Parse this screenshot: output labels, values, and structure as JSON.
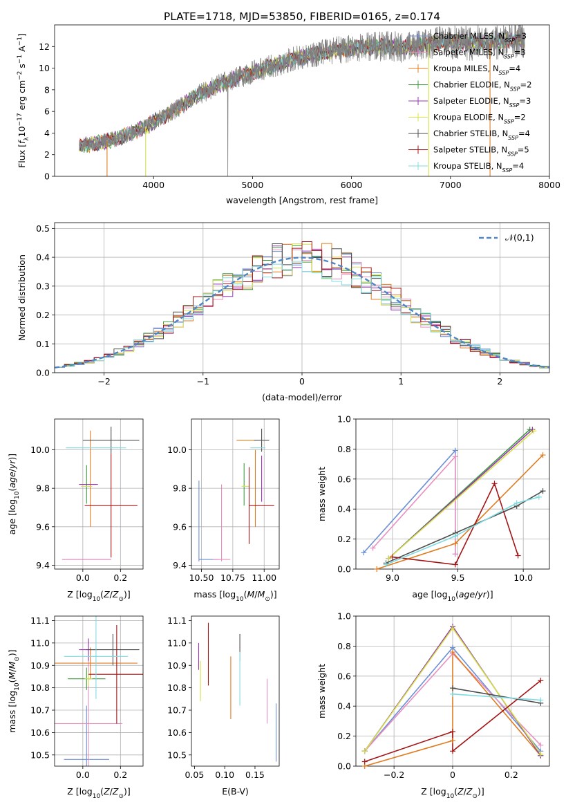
{
  "figure": {
    "title": "PLATE=1718, MJD=53850, FIBERID=0165, z=0.174"
  },
  "colors": {
    "chabrier_miles": "#6b8fd6",
    "salpeter_miles": "#e88fbf",
    "kroupa_miles": "#e07b20",
    "chabrier_elodie": "#3e9a3e",
    "salpeter_elodie": "#9a35b4",
    "kroupa_elodie": "#d6e24a",
    "chabrier_stelib": "#4d4d4d",
    "salpeter_stelib": "#a31515",
    "kroupa_stelib": "#7fdbe0",
    "data": "#808080",
    "normal": "#4f86c6"
  },
  "chart_data": [
    {
      "id": "spectrum",
      "type": "line",
      "xlabel": "wavelength [Angstrom, rest frame]",
      "ylabel": "Flux [f_λ10^-17 erg cm^-2 s^-1 A^-1]",
      "xlim": [
        3000,
        8000
      ],
      "ylim": [
        0,
        14
      ],
      "xticks": [
        4000,
        5000,
        6000,
        7000,
        8000
      ],
      "yticks": [
        0,
        2,
        4,
        6,
        8,
        10,
        12
      ],
      "grid": false,
      "legend_position": "right",
      "legend": [
        {
          "label": "Chabrier MILES, N",
          "sub": "SSP",
          "suffix": "=3",
          "color_key": "chabrier_miles"
        },
        {
          "label": "Salpeter MILES, N",
          "sub": "SSP",
          "suffix": "=3",
          "color_key": "salpeter_miles"
        },
        {
          "label": "Kroupa MILES, N",
          "sub": "SSP",
          "suffix": "=4",
          "color_key": "kroupa_miles"
        },
        {
          "label": "Chabrier ELODIE, N",
          "sub": "SSP",
          "suffix": "=2",
          "color_key": "chabrier_elodie"
        },
        {
          "label": "Salpeter ELODIE, N",
          "sub": "SSP",
          "suffix": "=3",
          "color_key": "salpeter_elodie"
        },
        {
          "label": "Kroupa ELODIE, N",
          "sub": "SSP",
          "suffix": "=2",
          "color_key": "kroupa_elodie"
        },
        {
          "label": "Chabrier STELIB, N",
          "sub": "SSP",
          "suffix": "=4",
          "color_key": "chabrier_stelib"
        },
        {
          "label": "Salpeter STELIB, N",
          "sub": "SSP",
          "suffix": "=5",
          "color_key": "salpeter_stelib"
        },
        {
          "label": "Kroupa STELIB, N",
          "sub": "SSP",
          "suffix": "=4",
          "color_key": "kroupa_stelib"
        }
      ],
      "continuum": {
        "x": [
          3250,
          3500,
          3700,
          3900,
          4000,
          4200,
          4400,
          4600,
          4800,
          5000,
          5200,
          5400,
          5600,
          5800,
          6000,
          6200,
          6400,
          6600,
          6800,
          7000,
          7200,
          7400,
          7600,
          7750
        ],
        "y": [
          2.8,
          3.2,
          3.7,
          4.5,
          5.0,
          6.0,
          7.3,
          8.2,
          9.0,
          9.6,
          10.2,
          10.8,
          11.2,
          11.6,
          11.8,
          12.0,
          12.0,
          11.9,
          12.3,
          12.4,
          12.3,
          12.4,
          12.6,
          12.6
        ]
      },
      "model_dropouts": [
        {
          "x": 3530,
          "color_key": "kroupa_miles"
        },
        {
          "x": 3920,
          "color_key": "kroupa_elodie"
        },
        {
          "x": 6780,
          "color_key": "kroupa_elodie"
        },
        {
          "x": 7400,
          "color_key": "kroupa_miles"
        }
      ]
    },
    {
      "id": "residuals",
      "type": "histogram",
      "xlabel": "(data-model)/error",
      "ylabel": "Normed distribution",
      "xlim": [
        -2.5,
        2.5
      ],
      "ylim": [
        0,
        0.52
      ],
      "xticks": [
        -2,
        -1,
        0,
        1,
        2
      ],
      "yticks": [
        0.0,
        0.1,
        0.2,
        0.3,
        0.4,
        0.5
      ],
      "grid": true,
      "legend_position": "upper-right",
      "legend_label": "𝒩(0,1)",
      "bin_range": [
        -2.5,
        2.5
      ],
      "bins": 50,
      "series": [
        {
          "color_key": "chabrier_miles",
          "seed": 11
        },
        {
          "color_key": "salpeter_miles",
          "seed": 23
        },
        {
          "color_key": "kroupa_miles",
          "seed": 37
        },
        {
          "color_key": "chabrier_elodie",
          "seed": 41
        },
        {
          "color_key": "salpeter_elodie",
          "seed": 53
        },
        {
          "color_key": "kroupa_elodie",
          "seed": 67
        },
        {
          "color_key": "chabrier_stelib",
          "seed": 71
        },
        {
          "color_key": "salpeter_stelib",
          "seed": 83
        },
        {
          "color_key": "kroupa_stelib",
          "seed": 97
        }
      ]
    },
    {
      "id": "z-age",
      "type": "errorbar",
      "xlabel": "Z [log10(Z/Z⊙)]",
      "ylabel": "age [log10(age/yr)]",
      "xlim": [
        -0.15,
        0.32
      ],
      "ylim": [
        9.38,
        10.16
      ],
      "xticks": [
        0.0,
        0.2
      ],
      "yticks": [
        9.4,
        9.6,
        9.8,
        10.0
      ],
      "grid": true,
      "points": [
        {
          "x": 0.02,
          "y": 9.43,
          "xerr": 0.13,
          "yerr": 0.0,
          "color_key": "chabrier_miles"
        },
        {
          "x": 0.02,
          "y": 9.43,
          "xerr": 0.13,
          "yerr": 0.0,
          "color_key": "salpeter_miles"
        },
        {
          "x": 0.04,
          "y": 9.85,
          "xerr": 0.0,
          "yerr": 0.25,
          "color_key": "kroupa_miles"
        },
        {
          "x": 0.02,
          "y": 9.82,
          "xerr": 0.0,
          "yerr": 0.1,
          "color_key": "chabrier_elodie"
        },
        {
          "x": 0.03,
          "y": 9.82,
          "xerr": 0.05,
          "yerr": 0.0,
          "color_key": "salpeter_elodie"
        },
        {
          "x": 0.02,
          "y": 9.81,
          "xerr": 0.03,
          "yerr": 0.0,
          "color_key": "kroupa_elodie"
        },
        {
          "x": 0.15,
          "y": 10.05,
          "xerr": 0.15,
          "yerr": 0.07,
          "color_key": "chabrier_stelib"
        },
        {
          "x": 0.15,
          "y": 9.71,
          "xerr": 0.14,
          "yerr": 0.27,
          "color_key": "salpeter_stelib"
        },
        {
          "x": 0.07,
          "y": 10.01,
          "xerr": 0.16,
          "yerr": 0.0,
          "color_key": "kroupa_stelib"
        }
      ]
    },
    {
      "id": "mass-age",
      "type": "errorbar",
      "xlabel": "mass [log10(M/M⊙)]",
      "ylabel": "",
      "xlim": [
        10.42,
        11.12
      ],
      "ylim": [
        9.38,
        10.16
      ],
      "xticks": [
        10.5,
        10.75,
        11.0
      ],
      "yticks": [
        9.4,
        9.6,
        9.8,
        10.0
      ],
      "grid": true,
      "points": [
        {
          "x": 10.48,
          "y": 9.63,
          "xerr": 0.0,
          "yerr": 0.21,
          "color_key": "chabrier_miles"
        },
        {
          "x": 10.56,
          "y": 9.43,
          "xerr": 0.08,
          "yerr": 0.0,
          "color_key": "chabrier_miles"
        },
        {
          "x": 10.66,
          "y": 9.62,
          "xerr": 0.0,
          "yerr": 0.2,
          "color_key": "salpeter_miles"
        },
        {
          "x": 10.66,
          "y": 9.43,
          "xerr": 0.07,
          "yerr": 0.0,
          "color_key": "salpeter_miles"
        },
        {
          "x": 10.93,
          "y": 9.8,
          "xerr": 0.0,
          "yerr": 0.2,
          "color_key": "kroupa_miles"
        },
        {
          "x": 10.86,
          "y": 10.05,
          "xerr": 0.08,
          "yerr": 0.0,
          "color_key": "kroupa_miles"
        },
        {
          "x": 10.84,
          "y": 9.82,
          "xerr": 0.0,
          "yerr": 0.11,
          "color_key": "chabrier_elodie"
        },
        {
          "x": 10.98,
          "y": 9.85,
          "xerr": 0.0,
          "yerr": 0.12,
          "color_key": "salpeter_elodie"
        },
        {
          "x": 10.85,
          "y": 9.81,
          "xerr": 0.03,
          "yerr": 0.0,
          "color_key": "kroupa_elodie"
        },
        {
          "x": 10.98,
          "y": 10.05,
          "xerr": 0.06,
          "yerr": 0.06,
          "color_key": "chabrier_stelib"
        },
        {
          "x": 10.88,
          "y": 9.71,
          "xerr": 0.0,
          "yerr": 0.2,
          "color_key": "salpeter_stelib"
        },
        {
          "x": 10.98,
          "y": 9.71,
          "xerr": 0.1,
          "yerr": 0.0,
          "color_key": "salpeter_stelib"
        },
        {
          "x": 10.95,
          "y": 10.01,
          "xerr": 0.06,
          "yerr": 0.0,
          "color_key": "kroupa_stelib"
        }
      ]
    },
    {
      "id": "weight-age",
      "type": "line",
      "xlabel": "age [log10(age/yr)]",
      "ylabel": "mass weight",
      "xlim": [
        8.72,
        10.2
      ],
      "ylim": [
        0,
        1.0
      ],
      "xticks": [
        9.0,
        9.5,
        10.0
      ],
      "yticks": [
        0.0,
        0.2,
        0.4,
        0.6,
        0.8,
        1.0
      ],
      "grid": true,
      "series": [
        {
          "color_key": "chabrier_miles",
          "x": [
            8.78,
            9.48,
            9.48
          ],
          "y": [
            0.11,
            0.79,
            0.1
          ]
        },
        {
          "color_key": "salpeter_miles",
          "x": [
            8.85,
            9.48,
            9.48
          ],
          "y": [
            0.14,
            0.75,
            0.1
          ]
        },
        {
          "color_key": "kroupa_miles",
          "x": [
            8.88,
            9.48,
            10.15
          ],
          "y": [
            0.0,
            0.17,
            0.76
          ]
        },
        {
          "color_key": "chabrier_elodie",
          "x": [
            8.97,
            10.05
          ],
          "y": [
            0.07,
            0.93
          ]
        },
        {
          "color_key": "salpeter_elodie",
          "x": [
            8.97,
            10.07
          ],
          "y": [
            0.07,
            0.93
          ]
        },
        {
          "color_key": "kroupa_elodie",
          "x": [
            8.97,
            10.08
          ],
          "y": [
            0.07,
            0.92
          ]
        },
        {
          "color_key": "chabrier_stelib",
          "x": [
            8.95,
            9.48,
            9.95,
            10.15
          ],
          "y": [
            0.04,
            0.24,
            0.42,
            0.52
          ]
        },
        {
          "color_key": "salpeter_stelib",
          "x": [
            9.0,
            9.48,
            9.78,
            9.96
          ],
          "y": [
            0.08,
            0.03,
            0.57,
            0.09
          ]
        },
        {
          "color_key": "kroupa_stelib",
          "x": [
            8.95,
            9.48,
            9.95,
            10.12
          ],
          "y": [
            0.03,
            0.22,
            0.44,
            0.48
          ]
        }
      ]
    },
    {
      "id": "z-mass",
      "type": "errorbar",
      "xlabel": "Z [log10(Z/Z⊙)]",
      "ylabel": "mass [log10(M/M⊙)]",
      "xlim": [
        -0.15,
        0.32
      ],
      "ylim": [
        10.45,
        11.12
      ],
      "xticks": [
        0.0,
        0.2
      ],
      "yticks": [
        10.5,
        10.6,
        10.7,
        10.8,
        10.9,
        11.0,
        11.1
      ],
      "grid": true,
      "points": [
        {
          "x": 0.02,
          "y": 10.48,
          "xerr": 0.12,
          "yerr": 0.24,
          "color_key": "chabrier_miles"
        },
        {
          "x": 0.03,
          "y": 10.64,
          "xerr": 0.18,
          "yerr": 0.38,
          "color_key": "salpeter_miles"
        },
        {
          "x": 0.04,
          "y": 10.91,
          "xerr": 0.25,
          "yerr": 0.07,
          "color_key": "kroupa_miles"
        },
        {
          "x": 0.02,
          "y": 10.84,
          "xerr": 0.1,
          "yerr": 0.05,
          "color_key": "chabrier_elodie"
        },
        {
          "x": 0.03,
          "y": 10.97,
          "xerr": 0.05,
          "yerr": 0.05,
          "color_key": "salpeter_elodie"
        },
        {
          "x": 0.03,
          "y": 10.84,
          "xerr": 0.02,
          "yerr": 0.03,
          "color_key": "kroupa_elodie"
        },
        {
          "x": 0.16,
          "y": 10.97,
          "xerr": 0.14,
          "yerr": 0.07,
          "color_key": "chabrier_stelib"
        },
        {
          "x": 0.18,
          "y": 10.86,
          "xerr": 0.15,
          "yerr": 0.22,
          "color_key": "salpeter_stelib"
        },
        {
          "x": 0.07,
          "y": 10.94,
          "xerr": 0.17,
          "yerr": 0.19,
          "color_key": "kroupa_stelib"
        }
      ]
    },
    {
      "id": "ebv-mass",
      "type": "errorbar",
      "xlabel": "E(B-V)",
      "ylabel": "",
      "xlim": [
        0.045,
        0.19
      ],
      "ylim": [
        10.45,
        11.12
      ],
      "xticks": [
        0.05,
        0.1,
        0.15
      ],
      "yticks": [
        10.5,
        10.6,
        10.7,
        10.8,
        10.9,
        11.0,
        11.1
      ],
      "grid": false,
      "points": [
        {
          "x": 0.185,
          "y": 10.6,
          "xerr": 0.0,
          "yerr": 0.13,
          "color_key": "chabrier_miles"
        },
        {
          "x": 0.17,
          "y": 10.74,
          "xerr": 0.0,
          "yerr": 0.1,
          "color_key": "salpeter_miles"
        },
        {
          "x": 0.11,
          "y": 10.8,
          "xerr": 0.0,
          "yerr": 0.14,
          "color_key": "kroupa_miles"
        },
        {
          "x": 0.057,
          "y": 10.94,
          "xerr": 0.0,
          "yerr": 0.06,
          "color_key": "salpeter_elodie"
        },
        {
          "x": 0.06,
          "y": 10.83,
          "xerr": 0.0,
          "yerr": 0.09,
          "color_key": "kroupa_elodie"
        },
        {
          "x": 0.125,
          "y": 10.98,
          "xerr": 0.0,
          "yerr": 0.06,
          "color_key": "chabrier_stelib"
        },
        {
          "x": 0.073,
          "y": 10.95,
          "xerr": 0.0,
          "yerr": 0.14,
          "color_key": "salpeter_stelib"
        },
        {
          "x": 0.125,
          "y": 10.84,
          "xerr": 0.0,
          "yerr": 0.12,
          "color_key": "kroupa_stelib"
        }
      ]
    },
    {
      "id": "weight-z",
      "type": "line",
      "xlabel": "Z [log10(Z/Z⊙)]",
      "ylabel": "mass weight",
      "xlim": [
        -0.33,
        0.33
      ],
      "ylim": [
        0,
        1.0
      ],
      "xticks": [
        -0.2,
        0.0,
        0.2
      ],
      "yticks": [
        0.0,
        0.2,
        0.4,
        0.6,
        0.8,
        1.0
      ],
      "grid": true,
      "series": [
        {
          "color_key": "chabrier_miles",
          "x": [
            -0.3,
            0.0,
            0.3
          ],
          "y": [
            0.1,
            0.79,
            0.1
          ]
        },
        {
          "color_key": "salpeter_miles",
          "x": [
            -0.3,
            0.0,
            0.3
          ],
          "y": [
            0.1,
            0.75,
            0.14
          ]
        },
        {
          "color_key": "kroupa_miles",
          "x": [
            -0.3,
            0.0,
            0.0,
            0.3
          ],
          "y": [
            0.0,
            0.17,
            0.76,
            0.07
          ]
        },
        {
          "color_key": "chabrier_elodie",
          "x": [
            -0.3,
            0.0,
            0.3
          ],
          "y": [
            0.1,
            0.93,
            0.07
          ]
        },
        {
          "color_key": "salpeter_elodie",
          "x": [
            -0.3,
            0.0,
            0.3
          ],
          "y": [
            0.1,
            0.93,
            0.07
          ]
        },
        {
          "color_key": "kroupa_elodie",
          "x": [
            -0.3,
            0.0,
            0.3
          ],
          "y": [
            0.1,
            0.92,
            0.08
          ]
        },
        {
          "color_key": "chabrier_stelib",
          "x": [
            0.0,
            0.3
          ],
          "y": [
            0.52,
            0.42
          ]
        },
        {
          "color_key": "salpeter_stelib",
          "x": [
            -0.3,
            0.0,
            0.0,
            0.3
          ],
          "y": [
            0.03,
            0.23,
            0.1,
            0.57
          ]
        },
        {
          "color_key": "kroupa_stelib",
          "x": [
            0.0,
            0.3
          ],
          "y": [
            0.48,
            0.44
          ]
        }
      ]
    }
  ]
}
